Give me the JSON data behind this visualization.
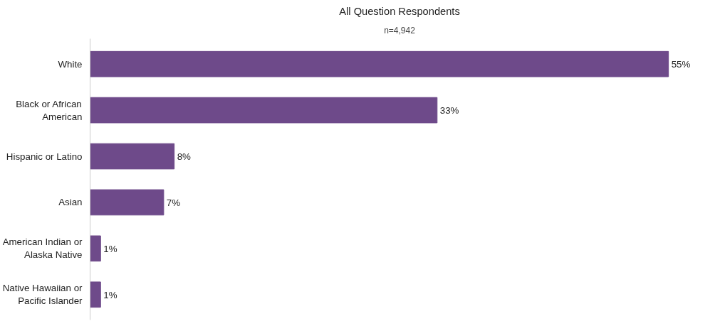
{
  "chart_data": {
    "type": "bar",
    "orientation": "horizontal",
    "title": "All Question Respondents",
    "subtitle": "n=4,942",
    "categories": [
      "White",
      "Black or African American",
      "Hispanic or Latino",
      "Asian",
      "American Indian or Alaska Native",
      "Native Hawaiian or Pacific Islander"
    ],
    "values": [
      55,
      33,
      8,
      7,
      1,
      1
    ],
    "color": "#6e4a8a",
    "value_labels": [
      "55%",
      "33%",
      "8%",
      "7%",
      "1%",
      "1%"
    ],
    "tick_labels": "y"
  }
}
